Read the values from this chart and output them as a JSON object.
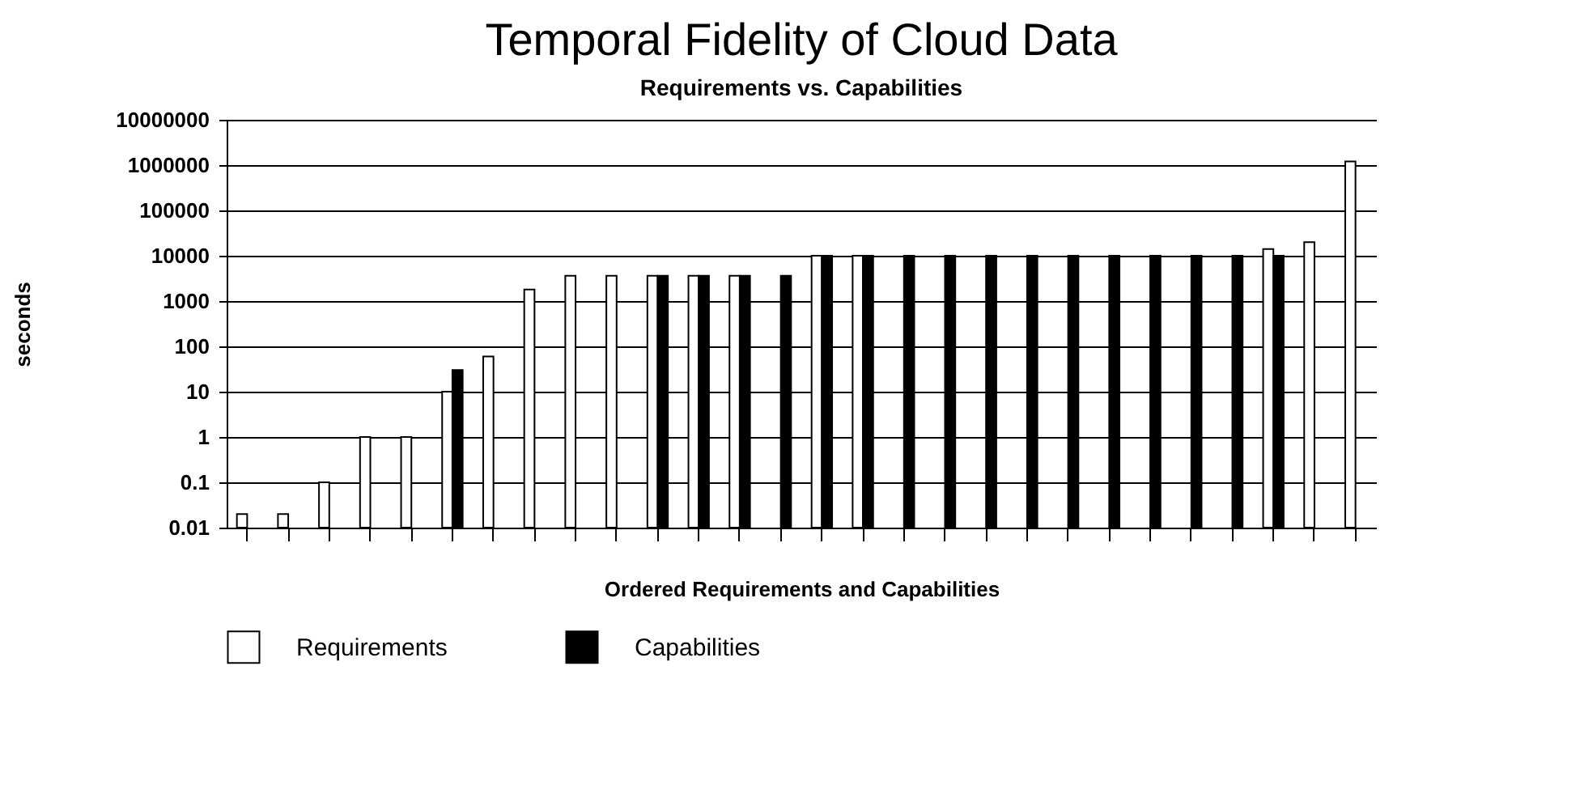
{
  "chart_data": {
    "type": "bar",
    "title": "Temporal Fidelity of Cloud Data",
    "subtitle": "Requirements vs. Capabilities",
    "xlabel": "Ordered Requirements and Capabilities",
    "ylabel": "seconds",
    "categories": [
      null,
      null,
      null,
      null,
      null,
      null,
      null,
      null,
      null,
      null,
      null,
      null,
      null,
      null,
      null,
      null,
      null,
      null,
      null,
      null,
      null,
      null,
      null,
      null,
      null,
      null,
      null,
      null
    ],
    "series": [
      {
        "name": "Requirements",
        "color": "#ffffff",
        "values": [
          0.02,
          0.02,
          0.1,
          1,
          1,
          10,
          60,
          1800,
          3600,
          3600,
          3600,
          3600,
          3600,
          null,
          10000,
          10000,
          null,
          null,
          null,
          null,
          null,
          null,
          null,
          null,
          null,
          14000,
          20000,
          1200000
        ]
      },
      {
        "name": "Capabilities",
        "color": "#000000",
        "values": [
          null,
          null,
          null,
          null,
          null,
          30,
          null,
          null,
          null,
          null,
          3600,
          3600,
          3600,
          3600,
          10000,
          10000,
          10000,
          10000,
          10000,
          10000,
          10000,
          10000,
          10000,
          10000,
          10000,
          10000,
          null,
          null
        ]
      }
    ],
    "log": true,
    "ylim": [
      0.01,
      10000000
    ],
    "yticks": [
      0.01,
      0.1,
      1,
      10,
      100,
      1000,
      10000,
      100000,
      1000000,
      10000000
    ],
    "grid": "y",
    "legend": "bottom"
  }
}
